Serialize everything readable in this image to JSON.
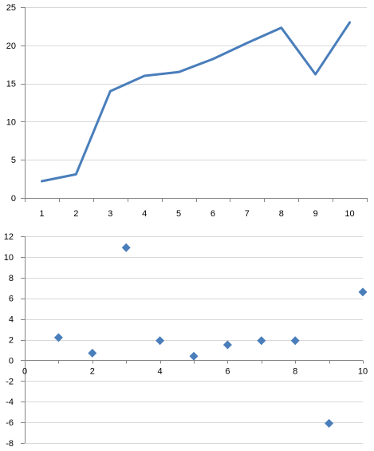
{
  "chart_data": [
    {
      "type": "line",
      "x": [
        1,
        2,
        3,
        4,
        5,
        6,
        7,
        8,
        9,
        10
      ],
      "series": [
        {
          "values": [
            2.2,
            3.1,
            14.0,
            16.0,
            16.5,
            18.2,
            20.3,
            22.3,
            16.2,
            23.0
          ]
        }
      ],
      "title": "",
      "xlabel": "",
      "ylabel": "",
      "ylim": [
        0,
        25
      ],
      "y_ticks": [
        0,
        5,
        10,
        15,
        20,
        25
      ],
      "x_ticks": [
        "1",
        "2",
        "3",
        "4",
        "5",
        "6",
        "7",
        "8",
        "9",
        "10"
      ],
      "grid": true,
      "color": "#4a7ebb"
    },
    {
      "type": "scatter",
      "x": [
        1,
        2,
        3,
        4,
        5,
        6,
        7,
        8,
        9,
        10
      ],
      "y": [
        2.2,
        0.7,
        10.9,
        1.9,
        0.4,
        1.5,
        1.9,
        1.9,
        -6.1,
        6.6
      ],
      "title": "",
      "xlabel": "",
      "ylabel": "",
      "xlim": [
        0,
        10
      ],
      "ylim": [
        -8,
        12
      ],
      "y_ticks": [
        -8,
        -6,
        -4,
        -2,
        0,
        2,
        4,
        6,
        8,
        10,
        12
      ],
      "x_ticks": [
        "0",
        "2",
        "4",
        "6",
        "8",
        "10"
      ],
      "grid": true,
      "marker": "diamond",
      "color": "#4a7ebb"
    }
  ]
}
